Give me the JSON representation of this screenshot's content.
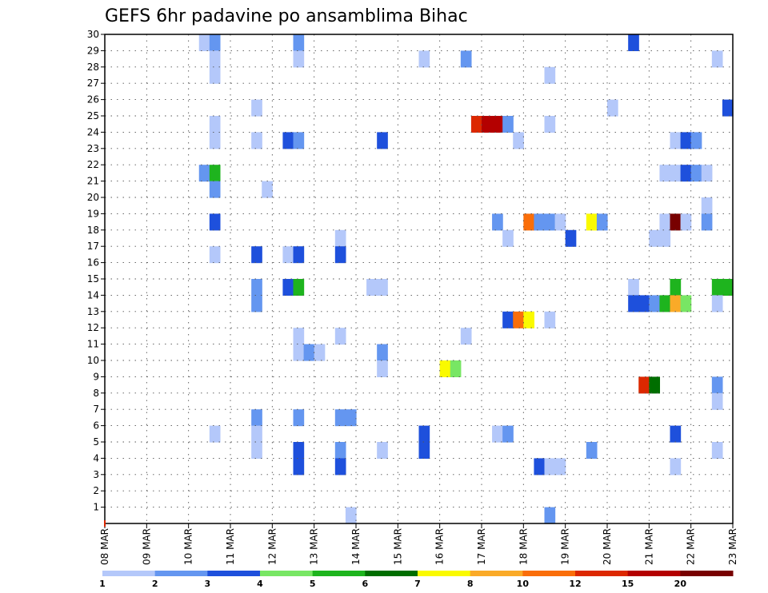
{
  "chart_data": {
    "type": "heatmap",
    "title": "GEFS 6hr padavine po ansamblima Bihac",
    "xlabel": "",
    "ylabel": "",
    "x_tick_labels": [
      "08 MAR",
      "09 MAR",
      "10 MAR",
      "11 MAR",
      "12 MAR",
      "13 MAR",
      "14 MAR",
      "15 MAR",
      "16 MAR",
      "17 MAR",
      "18 MAR",
      "19 MAR",
      "20 MAR",
      "21 MAR",
      "22 MAR",
      "23 MAR"
    ],
    "y_ticks": [
      1,
      2,
      3,
      4,
      5,
      6,
      7,
      8,
      9,
      10,
      11,
      12,
      13,
      14,
      15,
      16,
      17,
      18,
      19,
      20,
      21,
      22,
      23,
      24,
      25,
      26,
      27,
      28,
      29,
      30
    ],
    "xlim": [
      0,
      60
    ],
    "ylim": [
      0,
      30
    ],
    "grid": true,
    "legend": {
      "placement": "bottom",
      "labels": [
        "1",
        "2",
        "3",
        "4",
        "5",
        "6",
        "7",
        "8",
        "10",
        "12",
        "15",
        "20"
      ],
      "colors": [
        "#b4c8fa",
        "#6496f0",
        "#1e50dc",
        "#78e664",
        "#1eb41e",
        "#006e00",
        "#fafa00",
        "#faaa28",
        "#fa6e0a",
        "#dc2800",
        "#b40000",
        "#780000"
      ]
    },
    "colors": {
      "c1": "#b4c8fa",
      "c2": "#6496f0",
      "c3": "#1e50dc",
      "c4": "#78e664",
      "c5": "#1eb41e",
      "c6": "#006e00",
      "c7": "#fafa00",
      "c8": "#faaa28",
      "c9": "#fa6e0a",
      "c10": "#dc2800",
      "c11": "#b40000",
      "c12": "#780000"
    },
    "cells": [
      [
        10,
        30,
        "c1"
      ],
      [
        11,
        30,
        "c2"
      ],
      [
        19,
        30,
        "c2"
      ],
      [
        51,
        30,
        "c3"
      ],
      [
        11,
        29,
        "c1"
      ],
      [
        19,
        29,
        "c1"
      ],
      [
        31,
        29,
        "c1"
      ],
      [
        35,
        29,
        "c2"
      ],
      [
        59,
        29,
        "c1"
      ],
      [
        11,
        28,
        "c1"
      ],
      [
        43,
        28,
        "c1"
      ],
      [
        15,
        26,
        "c1"
      ],
      [
        49,
        26,
        "c1"
      ],
      [
        60,
        26,
        "c3"
      ],
      [
        11,
        25,
        "c1"
      ],
      [
        36,
        25,
        "c10"
      ],
      [
        37,
        25,
        "c11"
      ],
      [
        38,
        25,
        "c11"
      ],
      [
        39,
        25,
        "c2"
      ],
      [
        43,
        25,
        "c1"
      ],
      [
        11,
        24,
        "c1"
      ],
      [
        15,
        24,
        "c1"
      ],
      [
        18,
        24,
        "c3"
      ],
      [
        19,
        24,
        "c2"
      ],
      [
        27,
        24,
        "c3"
      ],
      [
        40,
        24,
        "c1"
      ],
      [
        55,
        24,
        "c1"
      ],
      [
        56,
        24,
        "c3"
      ],
      [
        57,
        24,
        "c2"
      ],
      [
        10,
        22,
        "c2"
      ],
      [
        11,
        22,
        "c5"
      ],
      [
        54,
        22,
        "c1"
      ],
      [
        55,
        22,
        "c1"
      ],
      [
        56,
        22,
        "c3"
      ],
      [
        57,
        22,
        "c2"
      ],
      [
        58,
        22,
        "c1"
      ],
      [
        11,
        21,
        "c2"
      ],
      [
        16,
        21,
        "c1"
      ],
      [
        58,
        20,
        "c1"
      ],
      [
        11,
        19,
        "c3"
      ],
      [
        38,
        19,
        "c2"
      ],
      [
        41,
        19,
        "c9"
      ],
      [
        42,
        19,
        "c2"
      ],
      [
        43,
        19,
        "c2"
      ],
      [
        44,
        19,
        "c1"
      ],
      [
        47,
        19,
        "c7"
      ],
      [
        48,
        19,
        "c2"
      ],
      [
        54,
        19,
        "c1"
      ],
      [
        55,
        19,
        "c12"
      ],
      [
        56,
        19,
        "c1"
      ],
      [
        58,
        19,
        "c2"
      ],
      [
        23,
        18,
        "c1"
      ],
      [
        39,
        18,
        "c1"
      ],
      [
        45,
        18,
        "c3"
      ],
      [
        53,
        18,
        "c1"
      ],
      [
        54,
        18,
        "c1"
      ],
      [
        11,
        17,
        "c1"
      ],
      [
        15,
        17,
        "c3"
      ],
      [
        18,
        17,
        "c1"
      ],
      [
        19,
        17,
        "c3"
      ],
      [
        23,
        17,
        "c3"
      ],
      [
        15,
        15,
        "c2"
      ],
      [
        18,
        15,
        "c3"
      ],
      [
        19,
        15,
        "c5"
      ],
      [
        26,
        15,
        "c1"
      ],
      [
        27,
        15,
        "c1"
      ],
      [
        51,
        15,
        "c1"
      ],
      [
        55,
        15,
        "c5"
      ],
      [
        59,
        15,
        "c5"
      ],
      [
        60,
        15,
        "c5"
      ],
      [
        15,
        14,
        "c2"
      ],
      [
        51,
        14,
        "c3"
      ],
      [
        52,
        14,
        "c3"
      ],
      [
        53,
        14,
        "c2"
      ],
      [
        54,
        14,
        "c5"
      ],
      [
        55,
        14,
        "c8"
      ],
      [
        56,
        14,
        "c4"
      ],
      [
        59,
        14,
        "c1"
      ],
      [
        39,
        13,
        "c3"
      ],
      [
        40,
        13,
        "c9"
      ],
      [
        41,
        13,
        "c7"
      ],
      [
        43,
        13,
        "c1"
      ],
      [
        19,
        12,
        "c1"
      ],
      [
        23,
        12,
        "c1"
      ],
      [
        35,
        12,
        "c1"
      ],
      [
        19,
        11,
        "c1"
      ],
      [
        20,
        11,
        "c2"
      ],
      [
        21,
        11,
        "c1"
      ],
      [
        27,
        11,
        "c2"
      ],
      [
        27,
        10,
        "c1"
      ],
      [
        33,
        10,
        "c7"
      ],
      [
        34,
        10,
        "c4"
      ],
      [
        52,
        9,
        "c10"
      ],
      [
        53,
        9,
        "c6"
      ],
      [
        59,
        9,
        "c2"
      ],
      [
        59,
        8,
        "c1"
      ],
      [
        15,
        7,
        "c2"
      ],
      [
        19,
        7,
        "c2"
      ],
      [
        23,
        7,
        "c2"
      ],
      [
        24,
        7,
        "c2"
      ],
      [
        11,
        6,
        "c1"
      ],
      [
        15,
        6,
        "c1"
      ],
      [
        31,
        6,
        "c3"
      ],
      [
        38,
        6,
        "c1"
      ],
      [
        39,
        6,
        "c2"
      ],
      [
        55,
        6,
        "c3"
      ],
      [
        15,
        5,
        "c1"
      ],
      [
        19,
        5,
        "c3"
      ],
      [
        23,
        5,
        "c2"
      ],
      [
        27,
        5,
        "c1"
      ],
      [
        31,
        5,
        "c3"
      ],
      [
        47,
        5,
        "c2"
      ],
      [
        59,
        5,
        "c1"
      ],
      [
        19,
        4,
        "c3"
      ],
      [
        23,
        4,
        "c3"
      ],
      [
        42,
        4,
        "c3"
      ],
      [
        43,
        4,
        "c1"
      ],
      [
        44,
        4,
        "c1"
      ],
      [
        55,
        4,
        "c1"
      ],
      [
        24,
        1,
        "c1"
      ],
      [
        43,
        1,
        "c2"
      ]
    ]
  }
}
